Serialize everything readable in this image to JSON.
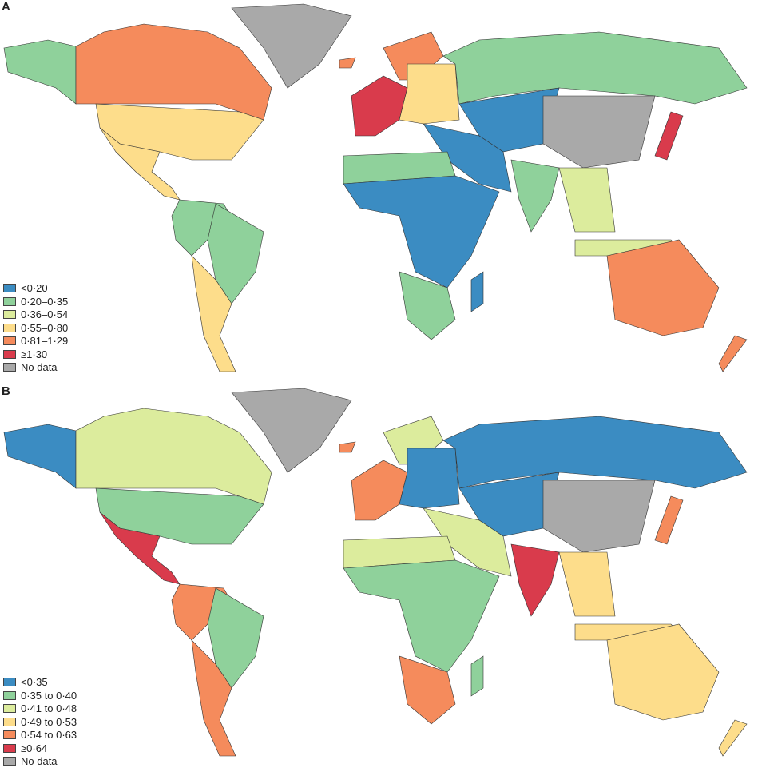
{
  "colors": {
    "c0": "#3b8cc2",
    "c1": "#8fd19b",
    "c2": "#dcec9d",
    "c3": "#fddd8b",
    "c4": "#f58b5c",
    "c5": "#d93b4c",
    "nodata": "#a9a9a9"
  },
  "panels": [
    {
      "letter": "A",
      "legend": [
        {
          "label": "<0·20",
          "color_key": "c0"
        },
        {
          "label": "0·20–0·35",
          "color_key": "c1"
        },
        {
          "label": "0·36–0·54",
          "color_key": "c2"
        },
        {
          "label": "0·55–0·80",
          "color_key": "c3"
        },
        {
          "label": "0·81–1·29",
          "color_key": "c4"
        },
        {
          "label": "≥1·30",
          "color_key": "c5"
        },
        {
          "label": "No data",
          "color_key": "nodata"
        }
      ],
      "regions": {
        "alaska": "c1",
        "canada": "c4",
        "greenland": "nodata",
        "usa": "c3",
        "mexico": "c3",
        "sa_north": "c1",
        "brazil": "c1",
        "sa_south": "c3",
        "iceland": "c4",
        "west_europe": "c5",
        "scandinavia": "c4",
        "east_europe": "c3",
        "russia": "c1",
        "central_asia": "c0",
        "china": "nodata",
        "middle_east": "c0",
        "north_africa": "c1",
        "sub_saharan_africa": "c0",
        "southern_africa": "c1",
        "madagascar": "c0",
        "india": "c1",
        "se_asia": "c2",
        "indonesia": "c2",
        "japan": "c5",
        "australia": "c4",
        "new_zealand": "c4"
      }
    },
    {
      "letter": "B",
      "legend": [
        {
          "label": "<0·35",
          "color_key": "c0"
        },
        {
          "label": "0·35 to 0·40",
          "color_key": "c1"
        },
        {
          "label": "0·41 to 0·48",
          "color_key": "c2"
        },
        {
          "label": "0·49 to 0·53",
          "color_key": "c3"
        },
        {
          "label": "0·54 to 0·63",
          "color_key": "c4"
        },
        {
          "label": "≥0·64",
          "color_key": "c5"
        },
        {
          "label": "No data",
          "color_key": "nodata"
        }
      ],
      "regions": {
        "alaska": "c0",
        "canada": "c2",
        "greenland": "nodata",
        "usa": "c1",
        "mexico": "c5",
        "sa_north": "c4",
        "brazil": "c1",
        "sa_south": "c4",
        "iceland": "c4",
        "west_europe": "c4",
        "scandinavia": "c2",
        "east_europe": "c0",
        "russia": "c0",
        "central_asia": "c0",
        "china": "nodata",
        "middle_east": "c2",
        "north_africa": "c2",
        "sub_saharan_africa": "c1",
        "southern_africa": "c4",
        "madagascar": "c1",
        "india": "c5",
        "se_asia": "c3",
        "indonesia": "c3",
        "japan": "c4",
        "australia": "c3",
        "new_zealand": "c3"
      }
    }
  ]
}
